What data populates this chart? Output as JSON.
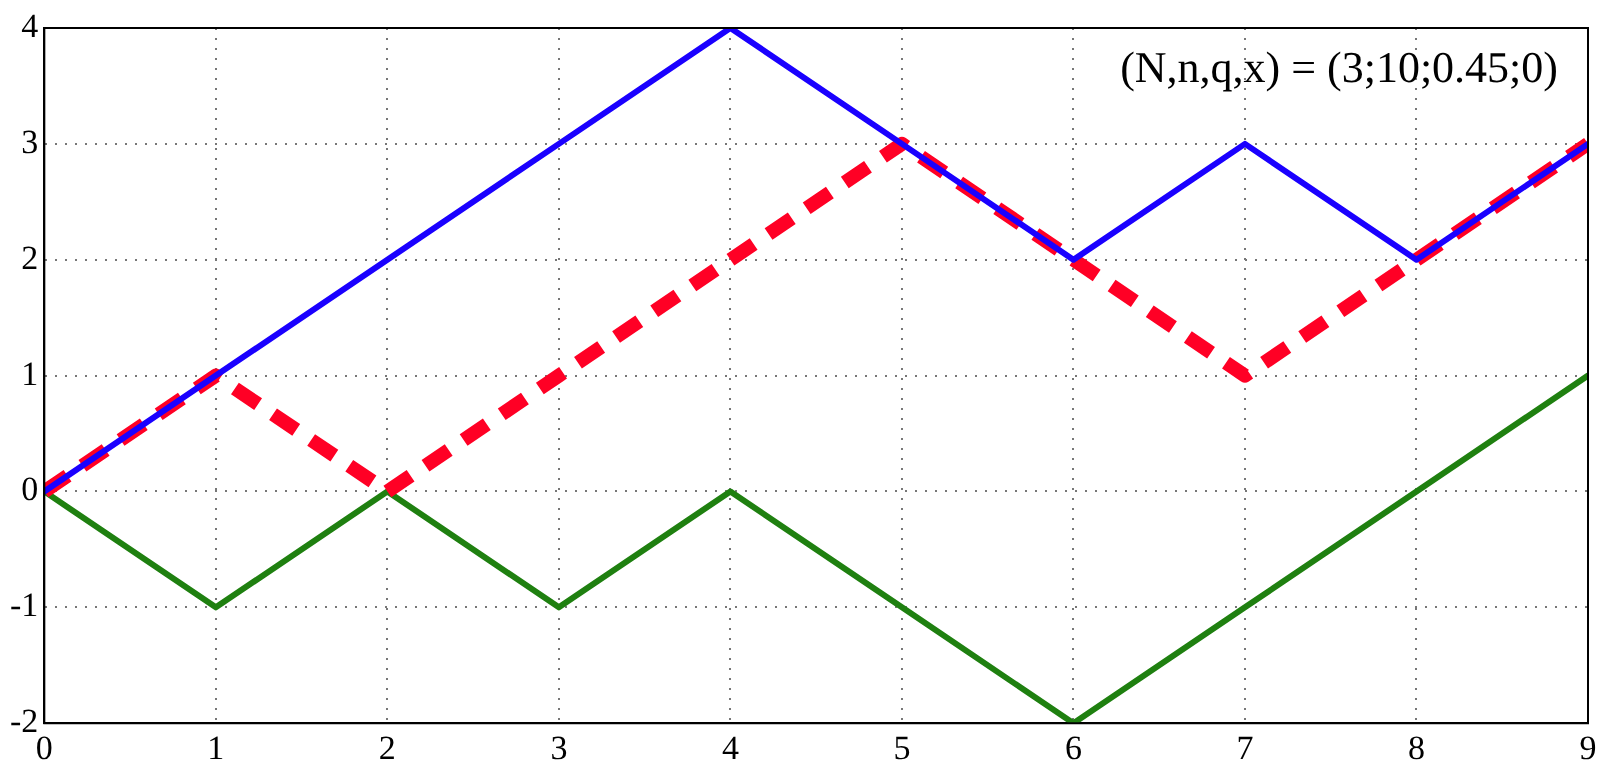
{
  "chart_data": {
    "type": "line",
    "x": [
      0,
      1,
      2,
      3,
      4,
      5,
      6,
      7,
      8,
      9
    ],
    "series": [
      {
        "color": "#1a00ff",
        "values": [
          0,
          1,
          2,
          3,
          4,
          3,
          2,
          3,
          2,
          3
        ]
      },
      {
        "color": "#ff0025",
        "line_style": "dashed",
        "values": [
          0,
          1,
          0,
          1,
          2,
          3,
          2,
          1,
          2,
          3
        ]
      },
      {
        "color": "#1f8010",
        "values": [
          0,
          -1,
          0,
          -1,
          0,
          -1,
          -2,
          -1,
          0,
          1
        ]
      }
    ],
    "xlim": [
      0,
      9
    ],
    "xticks": [
      0,
      1,
      2,
      3,
      4,
      5,
      6,
      7,
      8,
      9
    ],
    "ylim": [
      -2,
      4
    ],
    "yticks": [
      -2,
      -1,
      0,
      1,
      2,
      3,
      4
    ],
    "grid": true,
    "marker": "none",
    "legend": false,
    "annotations": [
      "(N,n,q,x) = (3;10;0.45;0)"
    ]
  }
}
